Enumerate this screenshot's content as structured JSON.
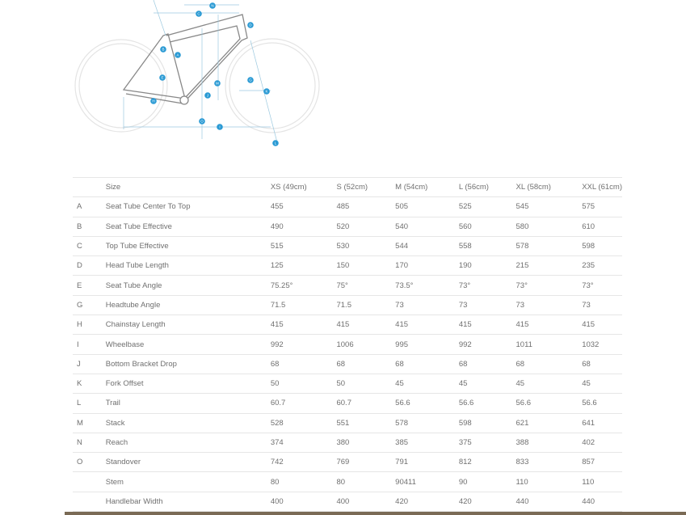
{
  "diagram": {
    "accent_color": "#2a9ad4",
    "markers": [
      "N",
      "C",
      "D",
      "B",
      "A",
      "E",
      "M",
      "J",
      "H",
      "O",
      "I",
      "G",
      "K",
      "L"
    ]
  },
  "table": {
    "headers": [
      "",
      "Size",
      "XS (49cm)",
      "S (52cm)",
      "M (54cm)",
      "L (56cm)",
      "XL (58cm)",
      "XXL (61cm)"
    ],
    "rows": [
      [
        "A",
        "Seat Tube Center To Top",
        "455",
        "485",
        "505",
        "525",
        "545",
        "575"
      ],
      [
        "B",
        "Seat Tube Effective",
        "490",
        "520",
        "540",
        "560",
        "580",
        "610"
      ],
      [
        "C",
        "Top Tube Effective",
        "515",
        "530",
        "544",
        "558",
        "578",
        "598"
      ],
      [
        "D",
        "Head Tube Length",
        "125",
        "150",
        "170",
        "190",
        "215",
        "235"
      ],
      [
        "E",
        "Seat Tube Angle",
        "75.25°",
        "75°",
        "73.5°",
        "73°",
        "73°",
        "73°"
      ],
      [
        "G",
        "Headtube Angle",
        "71.5",
        "71.5",
        "73",
        "73",
        "73",
        "73"
      ],
      [
        "H",
        "Chainstay Length",
        "415",
        "415",
        "415",
        "415",
        "415",
        "415"
      ],
      [
        "I",
        "Wheelbase",
        "992",
        "1006",
        "995",
        "992",
        "1011",
        "1032"
      ],
      [
        "J",
        "Bottom Bracket Drop",
        "68",
        "68",
        "68",
        "68",
        "68",
        "68"
      ],
      [
        "K",
        "Fork Offset",
        "50",
        "50",
        "45",
        "45",
        "45",
        "45"
      ],
      [
        "L",
        "Trail",
        "60.7",
        "60.7",
        "56.6",
        "56.6",
        "56.6",
        "56.6"
      ],
      [
        "M",
        "Stack",
        "528",
        "551",
        "578",
        "598",
        "621",
        "641"
      ],
      [
        "N",
        "Reach",
        "374",
        "380",
        "385",
        "375",
        "388",
        "402"
      ],
      [
        "O",
        "Standover",
        "742",
        "769",
        "791",
        "812",
        "833",
        "857"
      ],
      [
        "",
        "Stem",
        "80",
        "80",
        "90411",
        "90",
        "110",
        "110"
      ],
      [
        "",
        "Handlebar Width",
        "400",
        "400",
        "420",
        "420",
        "440",
        "440"
      ]
    ]
  }
}
